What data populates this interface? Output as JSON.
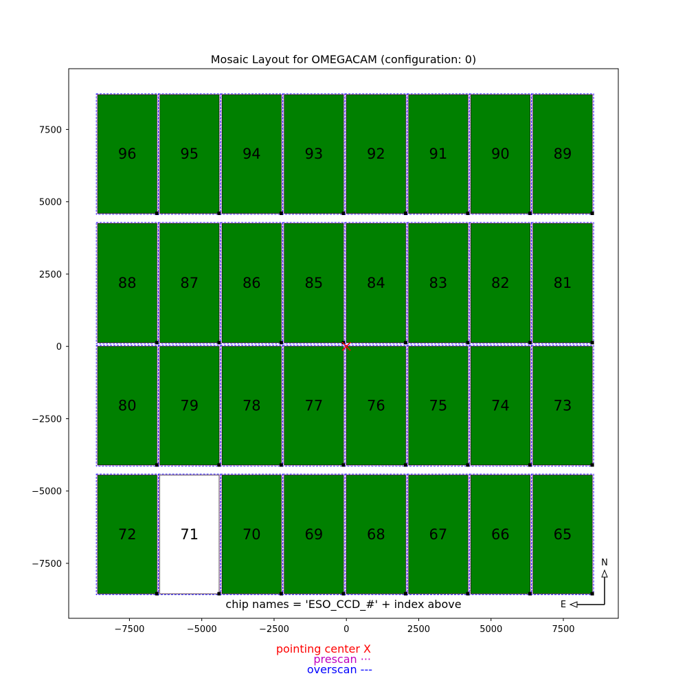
{
  "chart_data": {
    "type": "mosaic",
    "title": "Mosaic Layout for OMEGACAM (configuration: 0)",
    "xlim": [
      -9600,
      9400
    ],
    "ylim": [
      -9400,
      9600
    ],
    "xticks": [
      -7500,
      -5000,
      -2500,
      0,
      2500,
      5000,
      7500
    ],
    "yticks": [
      -7500,
      -5000,
      -2500,
      0,
      2500,
      5000,
      7500
    ],
    "xtick_labels": [
      "−7500",
      "−5000",
      "−2500",
      "0",
      "2500",
      "5000",
      "7500"
    ],
    "ytick_labels": [
      "−7500",
      "−5000",
      "−2500",
      "0",
      "2500",
      "5000",
      "7500"
    ],
    "chip_color": "#008000",
    "highlight_color": "#ffffff",
    "highlight_index": "71",
    "prescan_color": "#bf00bf",
    "overscan_color": "#0000ff",
    "pointing_center": [
      0,
      0
    ],
    "pointing_center_color": "#ff0000",
    "chips": [
      {
        "index": "96",
        "x0": -8600,
        "x1": -6550,
        "y0": 4600,
        "y1": 8700
      },
      {
        "index": "95",
        "x0": -6450,
        "x1": -4400,
        "y0": 4600,
        "y1": 8700
      },
      {
        "index": "94",
        "x0": -4300,
        "x1": -2250,
        "y0": 4600,
        "y1": 8700
      },
      {
        "index": "93",
        "x0": -2150,
        "x1": -100,
        "y0": 4600,
        "y1": 8700
      },
      {
        "index": "92",
        "x0": 0,
        "x1": 2050,
        "y0": 4600,
        "y1": 8700
      },
      {
        "index": "91",
        "x0": 2150,
        "x1": 4200,
        "y0": 4600,
        "y1": 8700
      },
      {
        "index": "90",
        "x0": 4300,
        "x1": 6350,
        "y0": 4600,
        "y1": 8700
      },
      {
        "index": "89",
        "x0": 6450,
        "x1": 8500,
        "y0": 4600,
        "y1": 8700
      },
      {
        "index": "88",
        "x0": -8600,
        "x1": -6550,
        "y0": 130,
        "y1": 4250
      },
      {
        "index": "87",
        "x0": -6450,
        "x1": -4400,
        "y0": 130,
        "y1": 4250
      },
      {
        "index": "86",
        "x0": -4300,
        "x1": -2250,
        "y0": 130,
        "y1": 4250
      },
      {
        "index": "85",
        "x0": -2150,
        "x1": -100,
        "y0": 130,
        "y1": 4250
      },
      {
        "index": "84",
        "x0": 0,
        "x1": 2050,
        "y0": 130,
        "y1": 4250
      },
      {
        "index": "83",
        "x0": 2150,
        "x1": 4200,
        "y0": 130,
        "y1": 4250
      },
      {
        "index": "82",
        "x0": 4300,
        "x1": 6350,
        "y0": 130,
        "y1": 4250
      },
      {
        "index": "81",
        "x0": 6450,
        "x1": 8500,
        "y0": 130,
        "y1": 4250
      },
      {
        "index": "80",
        "x0": -8600,
        "x1": -6550,
        "y0": -4100,
        "y1": 0
      },
      {
        "index": "79",
        "x0": -6450,
        "x1": -4400,
        "y0": -4100,
        "y1": 0
      },
      {
        "index": "78",
        "x0": -4300,
        "x1": -2250,
        "y0": -4100,
        "y1": 0
      },
      {
        "index": "77",
        "x0": -2150,
        "x1": -100,
        "y0": -4100,
        "y1": 0
      },
      {
        "index": "76",
        "x0": 0,
        "x1": 2050,
        "y0": -4100,
        "y1": 0
      },
      {
        "index": "75",
        "x0": 2150,
        "x1": 4200,
        "y0": -4100,
        "y1": 0
      },
      {
        "index": "74",
        "x0": 4300,
        "x1": 6350,
        "y0": -4100,
        "y1": 0
      },
      {
        "index": "73",
        "x0": 6450,
        "x1": 8500,
        "y0": -4100,
        "y1": 0
      },
      {
        "index": "72",
        "x0": -8600,
        "x1": -6550,
        "y0": -8550,
        "y1": -4450
      },
      {
        "index": "71",
        "x0": -6450,
        "x1": -4400,
        "y0": -8550,
        "y1": -4450
      },
      {
        "index": "70",
        "x0": -4300,
        "x1": -2250,
        "y0": -8550,
        "y1": -4450
      },
      {
        "index": "69",
        "x0": -2150,
        "x1": -100,
        "y0": -8550,
        "y1": -4450
      },
      {
        "index": "68",
        "x0": 0,
        "x1": 2050,
        "y0": -8550,
        "y1": -4450
      },
      {
        "index": "67",
        "x0": 2150,
        "x1": 4200,
        "y0": -8550,
        "y1": -4450
      },
      {
        "index": "66",
        "x0": 4300,
        "x1": 6350,
        "y0": -8550,
        "y1": -4450
      },
      {
        "index": "65",
        "x0": 6450,
        "x1": 8500,
        "y0": -8550,
        "y1": -4450
      }
    ],
    "annotation": "chip names = 'ESO_CCD_#' + index above",
    "compass": {
      "north": "N",
      "east": "E"
    },
    "legend": [
      {
        "label": "pointing center  X",
        "color": "#ff0000"
      },
      {
        "label": "prescan  ···",
        "color": "#bf00bf"
      },
      {
        "label": "overscan  ---",
        "color": "#0000ff"
      }
    ]
  }
}
